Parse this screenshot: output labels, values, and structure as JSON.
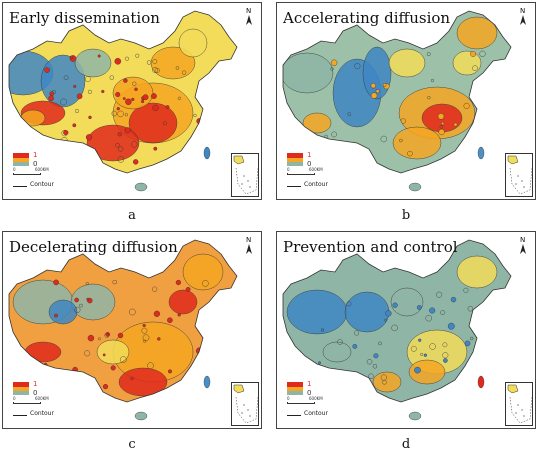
{
  "panels": [
    {
      "id": "a",
      "title": "Early dissemination",
      "letter": "a",
      "scheme": "early"
    },
    {
      "id": "b",
      "title": "Accelerating diffusion",
      "letter": "b",
      "scheme": "accel"
    },
    {
      "id": "c",
      "title": "Decelerating diffusion",
      "letter": "c",
      "scheme": "decel"
    },
    {
      "id": "d",
      "title": "Prevention and control",
      "letter": "d",
      "scheme": "prevent"
    }
  ],
  "legend": {
    "high_label": "1",
    "low_label": "0",
    "scale_start": "0",
    "scale_end": "600KM",
    "contour_label": "Contour"
  },
  "north_label": "N",
  "colors": {
    "high": "#e02a1e",
    "mid": "#f5a623",
    "moderate": "#f3dc5a",
    "low": "#8fb5a6",
    "lowest": "#3f86c4"
  }
}
